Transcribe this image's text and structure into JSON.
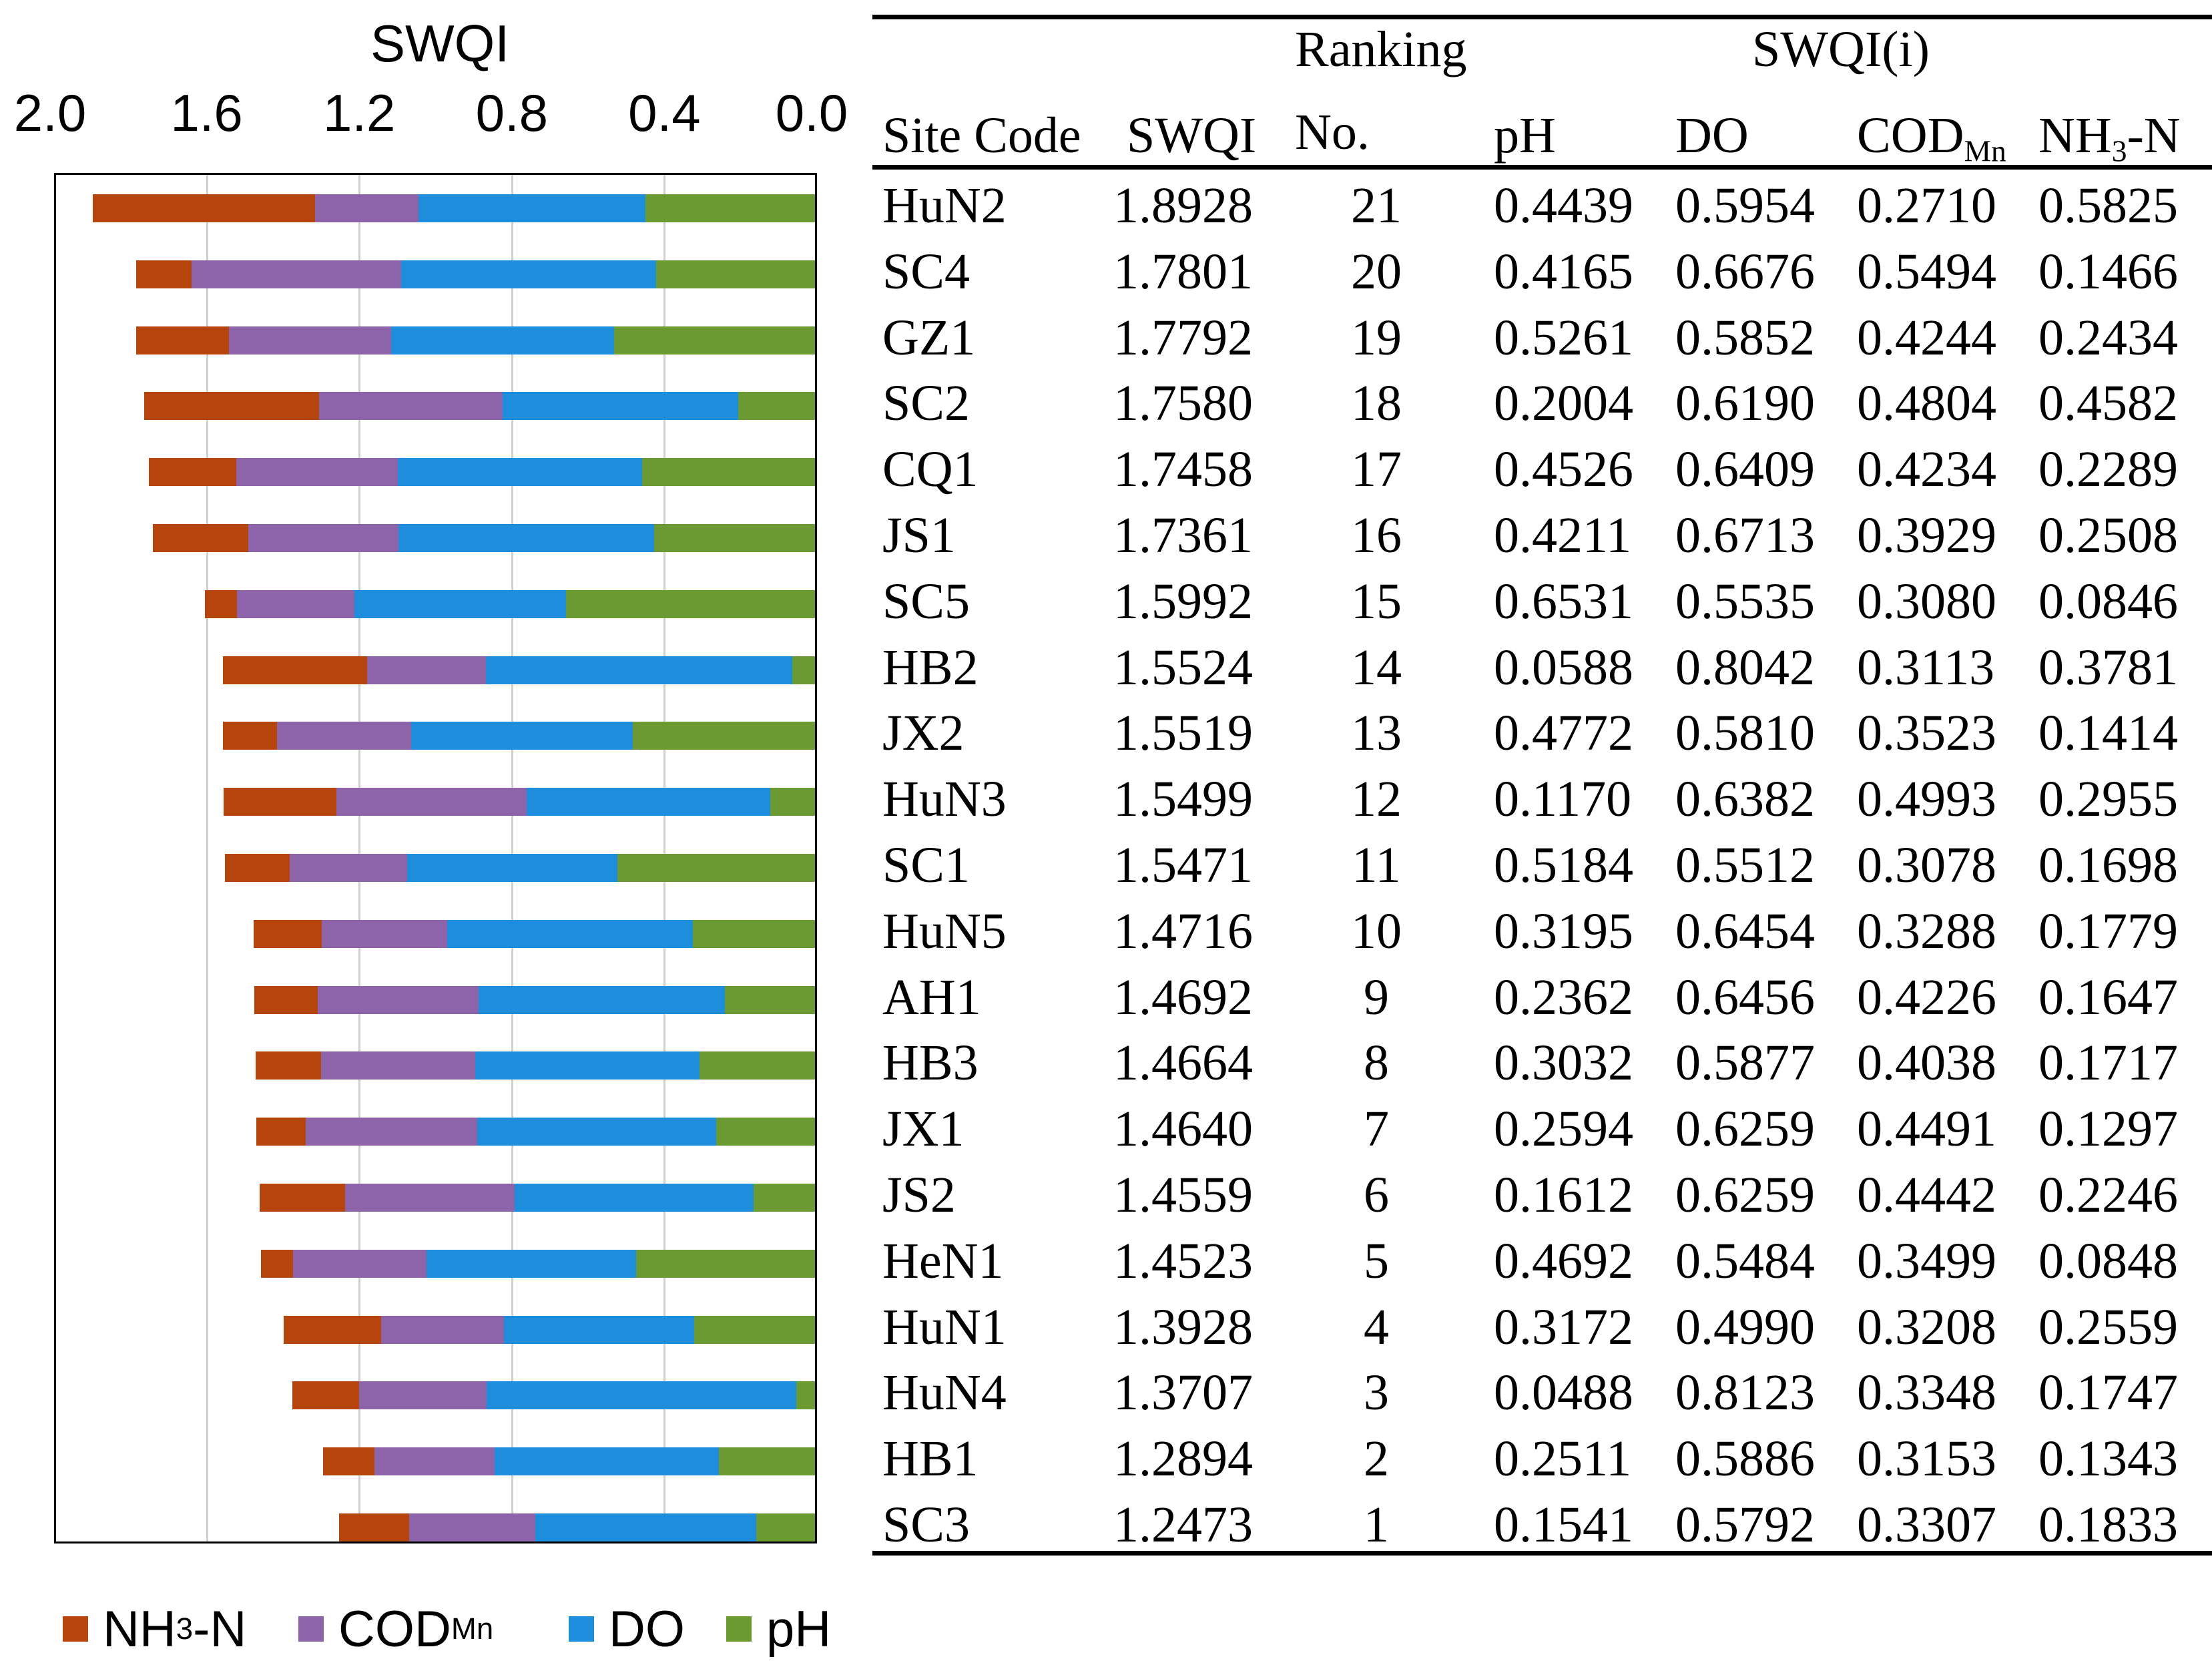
{
  "chart_data": {
    "type": "bar",
    "orientation": "horizontal-stacked",
    "title": "",
    "xlabel": "SWQI",
    "xlim": [
      2.0,
      0.0
    ],
    "xticks": [
      "2.0",
      "1.6",
      "1.2",
      "0.8",
      "0.4",
      "0.0"
    ],
    "grid": true,
    "legend_placement": "bottom",
    "legend": [
      {
        "key": "nh3",
        "label": "NH",
        "sub": "3",
        "suffix": "-N",
        "color": "#B5450C"
      },
      {
        "key": "cod",
        "label": "COD",
        "sub": "Mn",
        "suffix": "",
        "color": "#8D63A9"
      },
      {
        "key": "do",
        "label": "DO",
        "sub": "",
        "suffix": "",
        "color": "#1E8EDC"
      },
      {
        "key": "ph",
        "label": "pH",
        "sub": "",
        "suffix": "",
        "color": "#6B9A32"
      }
    ],
    "categories": [
      "HuN2",
      "SC4",
      "GZ1",
      "SC2",
      "CQ1",
      "JS1",
      "SC5",
      "HB2",
      "JX2",
      "HuN3",
      "SC1",
      "HuN5",
      "AH1",
      "HB3",
      "JX1",
      "JS2",
      "HeN1",
      "HuN1",
      "HuN4",
      "HB1",
      "SC3"
    ],
    "series": [
      {
        "name": "pH",
        "values": [
          0.4439,
          0.4165,
          0.5261,
          0.2004,
          0.4526,
          0.4211,
          0.6531,
          0.0588,
          0.4772,
          0.117,
          0.5184,
          0.3195,
          0.2362,
          0.3032,
          0.2594,
          0.1612,
          0.4692,
          0.3172,
          0.0488,
          0.2511,
          0.1541
        ]
      },
      {
        "name": "DO",
        "values": [
          0.5954,
          0.6676,
          0.5852,
          0.619,
          0.6409,
          0.6713,
          0.5535,
          0.8042,
          0.581,
          0.6382,
          0.5512,
          0.6454,
          0.6456,
          0.5877,
          0.6259,
          0.6259,
          0.5484,
          0.499,
          0.8123,
          0.5886,
          0.5792
        ]
      },
      {
        "name": "CODMn",
        "values": [
          0.271,
          0.5494,
          0.4244,
          0.4804,
          0.4234,
          0.3929,
          0.308,
          0.3113,
          0.3523,
          0.4993,
          0.3078,
          0.3288,
          0.4226,
          0.4038,
          0.4491,
          0.4442,
          0.3499,
          0.3208,
          0.3348,
          0.3153,
          0.3307
        ]
      },
      {
        "name": "NH3-N",
        "values": [
          0.5825,
          0.1466,
          0.2434,
          0.4582,
          0.2289,
          0.2508,
          0.0846,
          0.3781,
          0.1414,
          0.2955,
          0.1698,
          0.1779,
          0.1647,
          0.1717,
          0.1297,
          0.2246,
          0.0848,
          0.2559,
          0.1747,
          0.1343,
          0.1833
        ]
      }
    ]
  },
  "table": {
    "group_headers": {
      "ranking": "Ranking",
      "swqi_i": "SWQI(i)"
    },
    "headers": {
      "site": "Site Code",
      "swqi": "SWQI",
      "no": "No.",
      "ph": "pH",
      "do": "DO",
      "cod": "COD",
      "cod_sub": "Mn",
      "nh3": "NH",
      "nh3_sub": "3",
      "nh3_suffix": "-N"
    },
    "rows": [
      [
        "HuN2",
        "1.8928",
        "21",
        "0.4439",
        "0.5954",
        "0.2710",
        "0.5825"
      ],
      [
        "SC4",
        "1.7801",
        "20",
        "0.4165",
        "0.6676",
        "0.5494",
        "0.1466"
      ],
      [
        "GZ1",
        "1.7792",
        "19",
        "0.5261",
        "0.5852",
        "0.4244",
        "0.2434"
      ],
      [
        "SC2",
        "1.7580",
        "18",
        "0.2004",
        "0.6190",
        "0.4804",
        "0.4582"
      ],
      [
        "CQ1",
        "1.7458",
        "17",
        "0.4526",
        "0.6409",
        "0.4234",
        "0.2289"
      ],
      [
        "JS1",
        "1.7361",
        "16",
        "0.4211",
        "0.6713",
        "0.3929",
        "0.2508"
      ],
      [
        "SC5",
        "1.5992",
        "15",
        "0.6531",
        "0.5535",
        "0.3080",
        "0.0846"
      ],
      [
        "HB2",
        "1.5524",
        "14",
        "0.0588",
        "0.8042",
        "0.3113",
        "0.3781"
      ],
      [
        "JX2",
        "1.5519",
        "13",
        "0.4772",
        "0.5810",
        "0.3523",
        "0.1414"
      ],
      [
        "HuN3",
        "1.5499",
        "12",
        "0.1170",
        "0.6382",
        "0.4993",
        "0.2955"
      ],
      [
        "SC1",
        "1.5471",
        "11",
        "0.5184",
        "0.5512",
        "0.3078",
        "0.1698"
      ],
      [
        "HuN5",
        "1.4716",
        "10",
        "0.3195",
        "0.6454",
        "0.3288",
        "0.1779"
      ],
      [
        "AH1",
        "1.4692",
        "9",
        "0.2362",
        "0.6456",
        "0.4226",
        "0.1647"
      ],
      [
        "HB3",
        "1.4664",
        "8",
        "0.3032",
        "0.5877",
        "0.4038",
        "0.1717"
      ],
      [
        "JX1",
        "1.4640",
        "7",
        "0.2594",
        "0.6259",
        "0.4491",
        "0.1297"
      ],
      [
        "JS2",
        "1.4559",
        "6",
        "0.1612",
        "0.6259",
        "0.4442",
        "0.2246"
      ],
      [
        "HeN1",
        "1.4523",
        "5",
        "0.4692",
        "0.5484",
        "0.3499",
        "0.0848"
      ],
      [
        "HuN1",
        "1.3928",
        "4",
        "0.3172",
        "0.4990",
        "0.3208",
        "0.2559"
      ],
      [
        "HuN4",
        "1.3707",
        "3",
        "0.0488",
        "0.8123",
        "0.3348",
        "0.1747"
      ],
      [
        "HB1",
        "1.2894",
        "2",
        "0.2511",
        "0.5886",
        "0.3153",
        "0.1343"
      ],
      [
        "SC3",
        "1.2473",
        "1",
        "0.1541",
        "0.5792",
        "0.3307",
        "0.1833"
      ]
    ]
  }
}
